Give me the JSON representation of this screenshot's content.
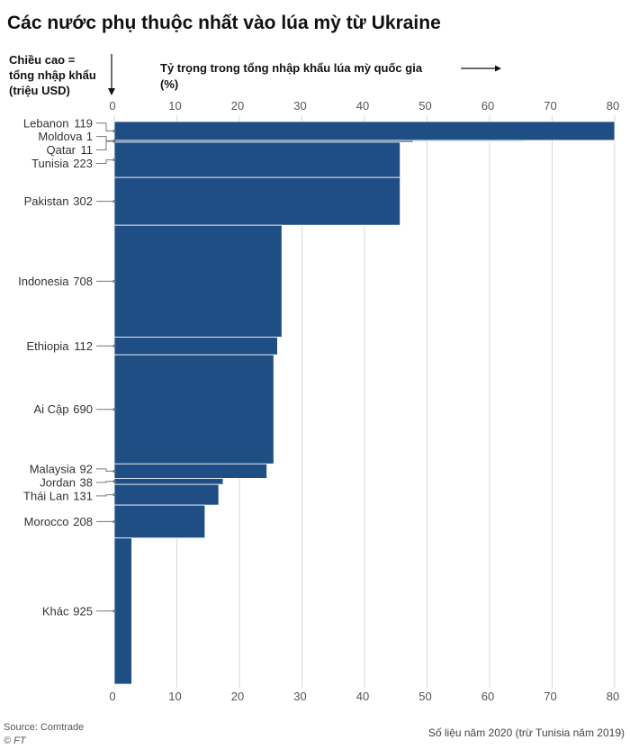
{
  "title": "Các nước phụ thuộc nhất vào lúa mỳ từ Ukraine",
  "height_note": [
    "Chiều cao =",
    "tổng nhập khẩu",
    "(triệu USD)"
  ],
  "share_note": [
    "Tỷ trọng trong tổng nhập khẩu lúa mỳ quốc gia",
    "(%)"
  ],
  "source": "Source: Comtrade",
  "credit": "© FT",
  "footnote": "Số liệu năm 2020 (trừ Tunisia năm 2019)",
  "colors": {
    "bar": "#1f4e85",
    "grid": "#d9d9d9",
    "axis": "#999999"
  },
  "chart_data": {
    "type": "bar",
    "orientation": "horizontal-variable-width",
    "title": "Các nước phụ thuộc nhất vào lúa mỳ từ Ukraine",
    "xlabel": "Tỷ trọng trong tổng nhập khẩu lúa mỳ quốc gia (%)",
    "ylabel": "Chiều cao = tổng nhập khẩu (triệu USD)",
    "xlim": [
      0,
      80
    ],
    "xticks": [
      0,
      10,
      20,
      30,
      40,
      50,
      60,
      70,
      80
    ],
    "grid": true,
    "countries": [
      {
        "name": "Lebanon",
        "import_value": 119,
        "share": 80
      },
      {
        "name": "Moldova",
        "import_value": 1,
        "share": 65.5
      },
      {
        "name": "Qatar",
        "import_value": 11,
        "share": 47.8
      },
      {
        "name": "Tunisia",
        "import_value": 223,
        "share": 45.7
      },
      {
        "name": "Pakistan",
        "import_value": 302,
        "share": 45.7
      },
      {
        "name": "Indonesia",
        "import_value": 708,
        "share": 26.8
      },
      {
        "name": "Ethiopia",
        "import_value": 112,
        "share": 26.1
      },
      {
        "name": "Ai Cập",
        "import_value": 690,
        "share": 25.5
      },
      {
        "name": "Malaysia",
        "import_value": 92,
        "share": 24.4
      },
      {
        "name": "Jordan",
        "import_value": 38,
        "share": 17.4
      },
      {
        "name": "Thái Lan",
        "import_value": 131,
        "share": 16.7
      },
      {
        "name": "Morocco",
        "import_value": 208,
        "share": 14.5
      },
      {
        "name": "Khác",
        "import_value": 925,
        "share": 2.8
      }
    ]
  }
}
